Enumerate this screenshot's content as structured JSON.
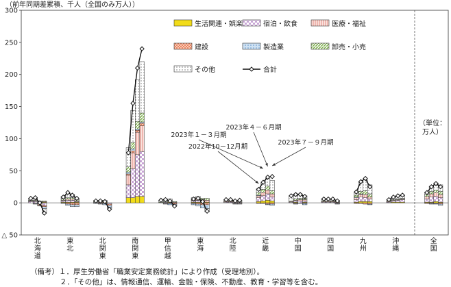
{
  "chart_data": {
    "type": "bar",
    "ylabel": "（前年同期差累積、千人（全国のみ万人））",
    "ylim": [
      -50,
      300
    ],
    "yticks": [
      300,
      250,
      200,
      150,
      100,
      50,
      0,
      -50
    ],
    "ytick_labels": [
      "300",
      "250",
      "200",
      "150",
      "100",
      "50",
      "0",
      "△ 50"
    ],
    "periods": [
      "2022年10－12月期",
      "2023年１－３月期",
      "2023年４－６月期",
      "2023年７－９月期"
    ],
    "categories": [
      "北海道",
      "東北",
      "北関東",
      "南関東",
      "甲信越",
      "東海",
      "北陸",
      "近畿",
      "中国",
      "四国",
      "九州",
      "沖縄",
      "全国"
    ],
    "category_labels": [
      [
        "北",
        "海",
        "道"
      ],
      [
        "東",
        "北"
      ],
      [
        "北",
        "関",
        "東"
      ],
      [
        "南",
        "関",
        "東"
      ],
      [
        "甲",
        "信",
        "越"
      ],
      [
        "東",
        "海"
      ],
      [
        "北",
        "陸"
      ],
      [
        "近",
        "畿"
      ],
      [
        "中",
        "国"
      ],
      [
        "四",
        "国"
      ],
      [
        "九",
        "州"
      ],
      [
        "沖",
        "縄"
      ],
      [
        "全",
        "国"
      ]
    ],
    "national_unit_note": [
      "（単位：",
      "万人）"
    ],
    "legend": [
      "生活関連・娯楽",
      "宿泊・飲食",
      "医療・福祉",
      "建設",
      "製造業",
      "卸売・小売",
      "その他",
      "合計"
    ],
    "colors": {
      "seikatsu": "#f2dc1a",
      "shukuhaku": "#c9a6d6",
      "iryo": "#f4b8b0",
      "kensetsu": "#e8734a",
      "seizo": "#8db8e0",
      "oroshi": "#7fb04f",
      "sonota": "#ffffff"
    },
    "series": [
      {
        "name": "生活関連・娯楽",
        "key": "seikatsu",
        "values": [
          [
            0,
            0,
            0,
            1
          ],
          [
            1,
            1,
            1,
            1
          ],
          [
            0,
            0,
            1,
            0
          ],
          [
            8,
            8,
            10,
            10
          ],
          [
            0,
            0,
            1,
            0
          ],
          [
            1,
            1,
            1,
            1
          ],
          [
            0,
            0,
            0,
            0
          ],
          [
            2,
            3,
            4,
            3
          ],
          [
            0,
            1,
            0,
            1
          ],
          [
            0,
            0,
            0,
            0
          ],
          [
            1,
            2,
            2,
            2
          ],
          [
            0,
            1,
            1,
            1
          ],
          [
            1,
            1,
            2,
            1
          ]
        ]
      },
      {
        "name": "宿泊・飲食",
        "key": "shukuhaku",
        "values": [
          [
            2,
            2,
            -2,
            -4
          ],
          [
            2,
            3,
            3,
            1
          ],
          [
            1,
            0,
            1,
            -2
          ],
          [
            20,
            45,
            65,
            70
          ],
          [
            0,
            1,
            1,
            0
          ],
          [
            2,
            3,
            2,
            0
          ],
          [
            1,
            1,
            1,
            1
          ],
          [
            6,
            8,
            10,
            6
          ],
          [
            1,
            2,
            3,
            2
          ],
          [
            1,
            1,
            1,
            0
          ],
          [
            4,
            7,
            6,
            4
          ],
          [
            1,
            2,
            3,
            4
          ],
          [
            5,
            8,
            8,
            7
          ]
        ]
      },
      {
        "name": "医療・福祉",
        "key": "iryo",
        "values": [
          [
            1,
            1,
            1,
            1
          ],
          [
            1,
            2,
            2,
            1
          ],
          [
            0,
            1,
            0,
            0
          ],
          [
            15,
            25,
            35,
            40
          ],
          [
            0,
            0,
            1,
            1
          ],
          [
            1,
            2,
            2,
            3
          ],
          [
            1,
            1,
            1,
            0
          ],
          [
            3,
            5,
            6,
            5
          ],
          [
            1,
            1,
            2,
            2
          ],
          [
            1,
            1,
            1,
            1
          ],
          [
            3,
            4,
            5,
            3
          ],
          [
            1,
            1,
            1,
            1
          ],
          [
            4,
            5,
            6,
            5
          ]
        ]
      },
      {
        "name": "建設",
        "key": "kensetsu",
        "values": [
          [
            0,
            -1,
            -2,
            -2
          ],
          [
            0,
            -2,
            -3,
            -3
          ],
          [
            0,
            -1,
            -1,
            -2
          ],
          [
            2,
            3,
            3,
            4
          ],
          [
            0,
            -1,
            -1,
            -2
          ],
          [
            -1,
            -2,
            -3,
            -3
          ],
          [
            0,
            0,
            -1,
            -1
          ],
          [
            -1,
            -1,
            -2,
            -2
          ],
          [
            0,
            -1,
            0,
            -1
          ],
          [
            0,
            0,
            0,
            -1
          ],
          [
            -1,
            -1,
            -2,
            -2
          ],
          [
            0,
            0,
            0,
            0
          ],
          [
            -1,
            -1,
            -1,
            -2
          ]
        ]
      },
      {
        "name": "製造業",
        "key": "seizo",
        "values": [
          [
            0,
            -1,
            -1,
            -3
          ],
          [
            -1,
            -2,
            -3,
            -3
          ],
          [
            -1,
            -1,
            -2,
            -3
          ],
          [
            3,
            3,
            2,
            2
          ],
          [
            0,
            -1,
            -2,
            -2
          ],
          [
            -2,
            -3,
            -5,
            -6
          ],
          [
            0,
            0,
            -1,
            -1
          ],
          [
            1,
            0,
            -1,
            -2
          ],
          [
            0,
            -1,
            -1,
            -2
          ],
          [
            0,
            0,
            0,
            -1
          ],
          [
            1,
            1,
            0,
            -1
          ],
          [
            0,
            0,
            0,
            0
          ],
          [
            0,
            -1,
            -1,
            -2
          ]
        ]
      },
      {
        "name": "卸売・小売",
        "key": "oroshi",
        "values": [
          [
            1,
            1,
            1,
            1
          ],
          [
            2,
            2,
            2,
            2
          ],
          [
            1,
            1,
            1,
            0
          ],
          [
            8,
            10,
            12,
            14
          ],
          [
            1,
            1,
            1,
            1
          ],
          [
            1,
            2,
            2,
            3
          ],
          [
            1,
            1,
            1,
            1
          ],
          [
            4,
            5,
            6,
            5
          ],
          [
            1,
            2,
            2,
            2
          ],
          [
            1,
            1,
            1,
            1
          ],
          [
            3,
            4,
            6,
            5
          ],
          [
            1,
            1,
            1,
            1
          ],
          [
            3,
            4,
            4,
            5
          ]
        ]
      },
      {
        "name": "その他",
        "key": "sonota",
        "values": [
          [
            3,
            3,
            1,
            -6
          ],
          [
            4,
            6,
            5,
            1
          ],
          [
            2,
            2,
            1,
            -3
          ],
          [
            30,
            50,
            65,
            80
          ],
          [
            3,
            4,
            2,
            -1
          ],
          [
            3,
            2,
            0,
            -5
          ],
          [
            2,
            2,
            1,
            2
          ],
          [
            6,
            10,
            12,
            16
          ],
          [
            8,
            8,
            7,
            4
          ],
          [
            3,
            3,
            3,
            2
          ],
          [
            5,
            14,
            17,
            14
          ],
          [
            2,
            4,
            5,
            5
          ],
          [
            4,
            8,
            11,
            10
          ]
        ]
      }
    ],
    "total": [
      [
        7,
        8,
        0,
        -16
      ],
      [
        9,
        16,
        12,
        7
      ],
      [
        3,
        3,
        2,
        -10
      ],
      [
        78,
        155,
        210,
        240
      ],
      [
        4,
        5,
        3,
        -5
      ],
      [
        6,
        7,
        2,
        -13
      ],
      [
        5,
        5,
        3,
        4
      ],
      [
        21,
        32,
        40,
        41
      ],
      [
        11,
        13,
        13,
        10
      ],
      [
        6,
        6,
        6,
        3
      ],
      [
        17,
        33,
        38,
        25
      ],
      [
        5,
        9,
        11,
        12
      ],
      [
        16,
        25,
        30,
        25
      ]
    ]
  },
  "annotations": [
    "2022年10－12月期",
    "2023年１－３月期",
    "2023年４－６月期",
    "2023年７－９月期"
  ],
  "notes": {
    "line1": "（備考）１．厚生労働省「職業安定業務統計」により作成（受理地別）。",
    "line2": "２．「その他」は、情報通信、運輸、金融・保険、不動産、教育・学習等を含む。"
  }
}
